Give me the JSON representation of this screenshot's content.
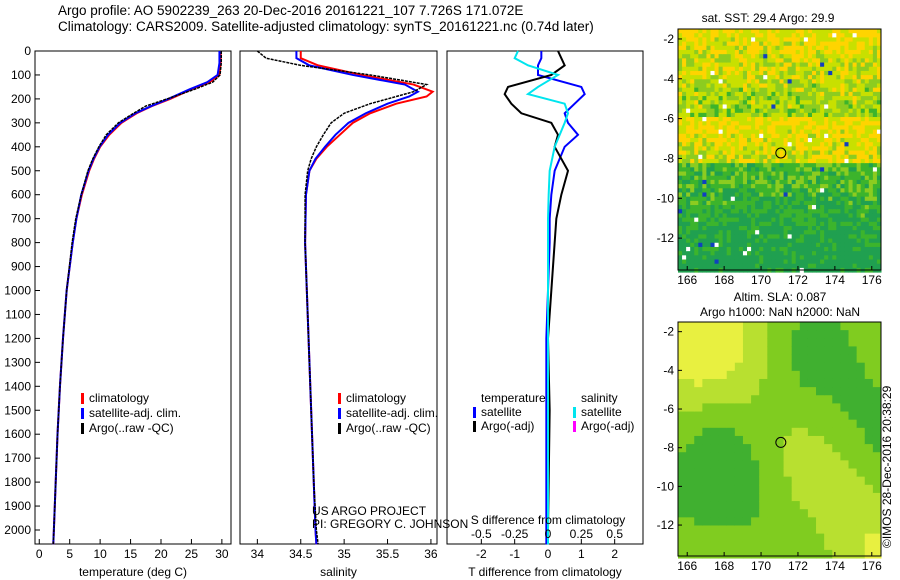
{
  "header": {
    "line1": "Argo profile: AO 5902239_263 20-Dec-2016 20161221_107 7.726S 171.072E",
    "line2": "Climatology: CARS2009. Satellite-adjusted climatology: synTS_20161221.nc (0.74d later)"
  },
  "credit": {
    "line1": "US ARGO PROJECT",
    "line2": "PI: GREGORY C. JOHNSON"
  },
  "stamp": "©IMOS 28-Dec-2016 20:38:29",
  "colors": {
    "climatology": "#ff0000",
    "satellite": "#0000ff",
    "argo": "#000000",
    "sal_sat": "#00e5ee",
    "sal_argo": "#ff00ff"
  },
  "chart_data": [
    {
      "type": "line",
      "id": "temp",
      "xlabel": "temperature (deg C)",
      "ylabel": "",
      "xlim": [
        -0.7,
        31.5
      ],
      "ylim": [
        2060,
        0
      ],
      "xticks": [
        0,
        5,
        10,
        15,
        20,
        25,
        30
      ],
      "yticks": [
        0,
        100,
        200,
        300,
        400,
        500,
        600,
        700,
        800,
        900,
        1000,
        1100,
        1200,
        1300,
        1400,
        1500,
        1600,
        1700,
        1800,
        1900,
        2000
      ],
      "legend": [
        "climatology",
        "satellite-adj. clim.",
        "Argo(..raw -QC)"
      ],
      "depth": [
        0,
        50,
        100,
        130,
        160,
        200,
        230,
        260,
        300,
        350,
        400,
        450,
        500,
        600,
        700,
        800,
        1000,
        1200,
        1400,
        1600,
        1800,
        2000,
        2060
      ],
      "series": [
        {
          "name": "climatology",
          "values": [
            29.8,
            29.8,
            29.6,
            28,
            25,
            21.5,
            18.5,
            16,
            13.5,
            11.5,
            10,
            9,
            8.2,
            7,
            6.1,
            5.5,
            4.5,
            3.9,
            3.4,
            3,
            2.7,
            2.4,
            2.3
          ]
        },
        {
          "name": "satellite-adj. clim.",
          "values": [
            29.6,
            29.6,
            29.3,
            27.6,
            24.7,
            21.2,
            18.4,
            15.8,
            13.3,
            11.3,
            9.9,
            8.9,
            8.1,
            6.9,
            6.1,
            5.5,
            4.5,
            3.9,
            3.4,
            3,
            2.7,
            2.4,
            2.3
          ]
        },
        {
          "name": "Argo(..raw -QC)",
          "values": [
            29.9,
            29.9,
            29.7,
            28.5,
            25.5,
            21,
            17.5,
            15.5,
            13,
            11,
            9.8,
            8.8,
            8,
            6.9,
            6,
            5.4,
            4.5,
            3.9,
            3.4,
            3,
            2.7,
            2.4,
            2.3
          ]
        }
      ]
    },
    {
      "type": "line",
      "id": "sal",
      "xlabel": "salinity",
      "xlim": [
        33.8,
        36.07
      ],
      "ylim": [
        2060,
        0
      ],
      "xticks": [
        34,
        34.5,
        35,
        35.5,
        36
      ],
      "legend": [
        "climatology",
        "satellite-adj. clim.",
        "Argo(..raw -QC)"
      ],
      "depth": [
        0,
        30,
        60,
        100,
        140,
        170,
        190,
        220,
        260,
        300,
        350,
        400,
        450,
        500,
        600,
        800,
        1000,
        1200,
        1400,
        1600,
        1800,
        2000,
        2060
      ],
      "series": [
        {
          "name": "climatology",
          "values": [
            34.5,
            34.5,
            34.7,
            35.2,
            35.8,
            36.02,
            35.95,
            35.6,
            35.3,
            35.1,
            34.95,
            34.8,
            34.68,
            34.6,
            34.56,
            34.55,
            34.57,
            34.59,
            34.61,
            34.63,
            34.65,
            34.67,
            34.68
          ]
        },
        {
          "name": "satellite-adj. clim.",
          "values": [
            34.45,
            34.45,
            34.6,
            35.1,
            35.7,
            35.85,
            35.75,
            35.5,
            35.25,
            35.05,
            34.9,
            34.78,
            34.67,
            34.6,
            34.56,
            34.55,
            34.57,
            34.59,
            34.61,
            34.63,
            34.65,
            34.67,
            34.68
          ]
        },
        {
          "name": "Argo(..raw -QC)",
          "values": [
            34.0,
            34.1,
            34.5,
            35.3,
            35.95,
            35.8,
            35.6,
            35.3,
            35.0,
            34.85,
            34.76,
            34.68,
            34.62,
            34.58,
            34.55,
            34.55,
            34.57,
            34.59,
            34.61,
            34.63,
            34.65,
            34.68,
            34.7
          ]
        }
      ]
    },
    {
      "type": "line",
      "id": "diff",
      "xlabel": "T difference from climatology",
      "x2label": "S difference from climatology",
      "xlim": [
        -3.03,
        2.85
      ],
      "ylim": [
        2060,
        0
      ],
      "xticks": [
        -2,
        -1,
        0,
        1,
        2
      ],
      "x2ticks": [
        "-0.5",
        "-0.25",
        "0",
        "0.25",
        "0.5"
      ],
      "legend_temp_title": "temperature",
      "legend_sal_title": "salinity",
      "legend_items": [
        "satellite",
        "Argo(-adj)"
      ],
      "depth": [
        0,
        30,
        60,
        100,
        150,
        180,
        220,
        260,
        300,
        350,
        400,
        500,
        600,
        700,
        800,
        1000,
        1200,
        1500,
        2000,
        2060
      ],
      "series": [
        {
          "name": "temperature satellite",
          "values": [
            -0.2,
            -0.2,
            -0.3,
            -0.3,
            1,
            1.1,
            0.8,
            0.5,
            0.6,
            0.9,
            0.5,
            0.2,
            0.1,
            0.05,
            0.05,
            0,
            -0.05,
            -0.05,
            -0.05,
            -0.05
          ]
        },
        {
          "name": "temperature Argo(-adj)",
          "values": [
            0.3,
            0.4,
            0.5,
            0.1,
            -1.2,
            -1.3,
            -1.1,
            -0.8,
            0.1,
            0.3,
            0.2,
            0.6,
            0.4,
            0.25,
            0.2,
            0.1,
            0,
            0.05,
            0,
            0
          ]
        },
        {
          "name": "salinity satellite",
          "values": [
            -0.9,
            -1,
            -0.6,
            0.3,
            -0.3,
            -0.6,
            0.5,
            0.6,
            0.5,
            0.35,
            0.2,
            0.05,
            0.02,
            0,
            0,
            0,
            0,
            0,
            0,
            0
          ]
        }
      ]
    },
    {
      "type": "heatmap",
      "id": "sst",
      "title": "sat. SST: 29.4 Argo: 29.9",
      "xticks": [
        166,
        168,
        170,
        172,
        174,
        176
      ],
      "yticks": [
        -2,
        -4,
        -6,
        -8,
        -10,
        -12
      ],
      "xlim": [
        165.5,
        176.5
      ],
      "ylim": [
        -13.6,
        -1.5
      ],
      "marker": [
        171.072,
        -7.726
      ]
    },
    {
      "type": "heatmap",
      "id": "sla",
      "title1": "Altim. SLA: 0.087",
      "title2": "Argo h1000: NaN h2000: NaN",
      "xticks": [
        166,
        168,
        170,
        172,
        174,
        176
      ],
      "yticks": [
        -2,
        -4,
        -6,
        -8,
        -10,
        -12
      ],
      "xlim": [
        165.5,
        176.5
      ],
      "ylim": [
        -13.6,
        -1.5
      ],
      "marker": [
        171.072,
        -7.726
      ]
    }
  ]
}
